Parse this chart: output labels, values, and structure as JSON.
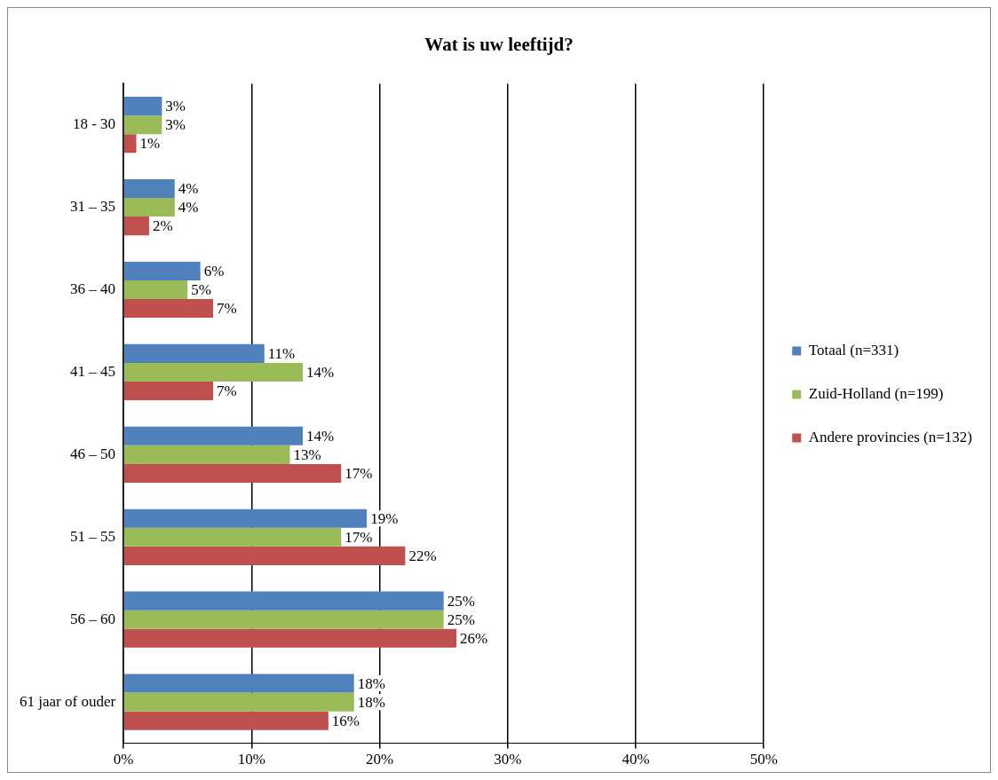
{
  "chart_data": {
    "type": "bar",
    "orientation": "horizontal",
    "title": "Wat is uw leeftijd?",
    "categories": [
      "18 - 30",
      "31 – 35",
      "36 – 40",
      "41 – 45",
      "46 – 50",
      "51 – 55",
      "56 – 60",
      "61 jaar of ouder"
    ],
    "series": [
      {
        "name": "Totaal (n=331)",
        "color": "#4f81bd",
        "values": [
          3,
          4,
          6,
          11,
          14,
          19,
          25,
          18
        ],
        "value_labels": [
          "3%",
          "4%",
          "6%",
          "11%",
          "14%",
          "19%",
          "25%",
          "18%"
        ]
      },
      {
        "name": "Zuid-Holland (n=199)",
        "color": "#9bbb59",
        "values": [
          3,
          4,
          5,
          14,
          13,
          17,
          25,
          18
        ],
        "value_labels": [
          "3%",
          "4%",
          "5%",
          "14%",
          "13%",
          "17%",
          "25%",
          "18%"
        ]
      },
      {
        "name": "Andere provincies (n=132)",
        "color": "#c0504d",
        "values": [
          1,
          2,
          7,
          7,
          17,
          22,
          26,
          16
        ],
        "value_labels": [
          "1%",
          "2%",
          "7%",
          "7%",
          "17%",
          "22%",
          "26%",
          "16%"
        ]
      }
    ],
    "xlim": [
      0,
      50
    ],
    "xticks": [
      {
        "value": 0,
        "label": "0%"
      },
      {
        "value": 10,
        "label": "10%"
      },
      {
        "value": 20,
        "label": "20%"
      },
      {
        "value": 30,
        "label": "30%"
      },
      {
        "value": 40,
        "label": "40%"
      },
      {
        "value": 50,
        "label": "50%"
      }
    ],
    "grid": "x",
    "legend": "right"
  }
}
